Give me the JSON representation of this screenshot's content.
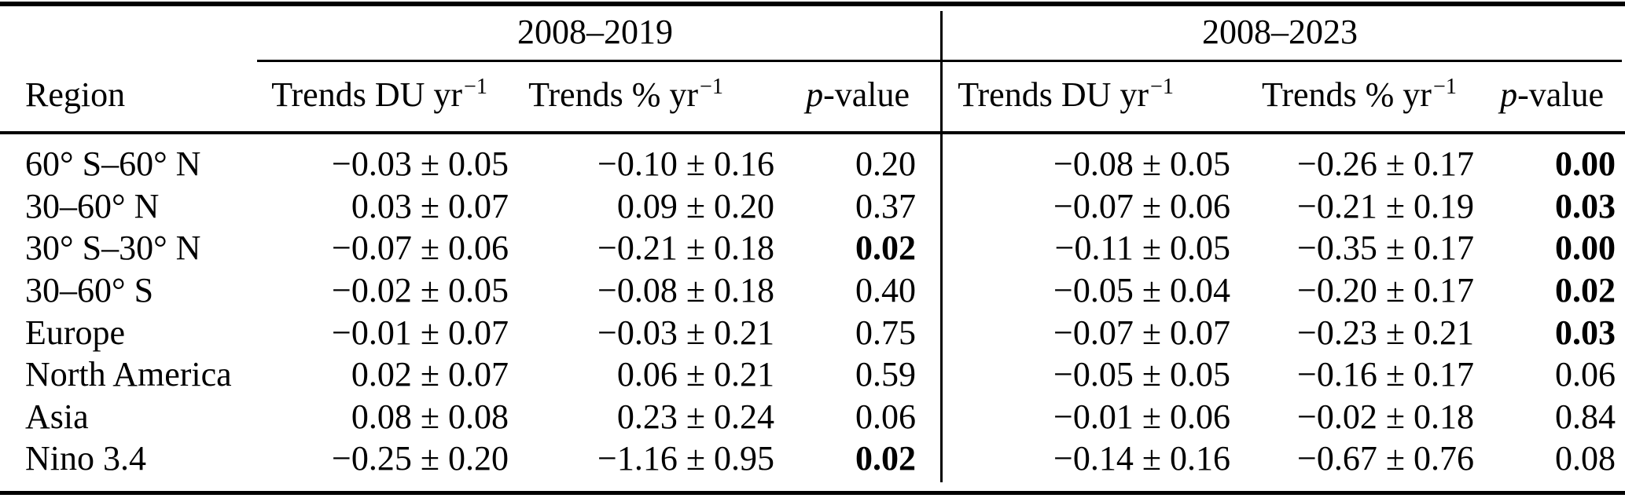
{
  "colors": {
    "text": "#000000",
    "background": "#ffffff",
    "rule": "#000000"
  },
  "table": {
    "group_headers": [
      {
        "label": "2008–2019"
      },
      {
        "label": "2008–2023"
      }
    ],
    "column_headers": {
      "region": "Region",
      "trends_du": {
        "text": "Trends DU yr",
        "sup": "−1"
      },
      "trends_pct": {
        "text": "Trends % yr",
        "sup": "−1"
      },
      "p_value": {
        "italic": "p",
        "rest": "-value"
      }
    },
    "rows": [
      {
        "region": "60° S–60° N",
        "du_2008_2019": "−0.03 ± 0.05",
        "pct_2008_2019": "−0.10 ± 0.16",
        "p_2008_2019": "0.20",
        "p_2008_2019_bold": false,
        "du_2008_2023": "−0.08 ± 0.05",
        "pct_2008_2023": "−0.26 ± 0.17",
        "p_2008_2023": "0.00",
        "p_2008_2023_bold": true
      },
      {
        "region": "30–60° N",
        "du_2008_2019": "0.03 ± 0.07",
        "pct_2008_2019": "0.09 ± 0.20",
        "p_2008_2019": "0.37",
        "p_2008_2019_bold": false,
        "du_2008_2023": "−0.07 ± 0.06",
        "pct_2008_2023": "−0.21 ± 0.19",
        "p_2008_2023": "0.03",
        "p_2008_2023_bold": true
      },
      {
        "region": "30° S–30° N",
        "du_2008_2019": "−0.07 ± 0.06",
        "pct_2008_2019": "−0.21 ± 0.18",
        "p_2008_2019": "0.02",
        "p_2008_2019_bold": true,
        "du_2008_2023": "−0.11 ± 0.05",
        "pct_2008_2023": "−0.35 ± 0.17",
        "p_2008_2023": "0.00",
        "p_2008_2023_bold": true
      },
      {
        "region": "30–60° S",
        "du_2008_2019": "−0.02 ± 0.05",
        "pct_2008_2019": "−0.08 ± 0.18",
        "p_2008_2019": "0.40",
        "p_2008_2019_bold": false,
        "du_2008_2023": "−0.05 ± 0.04",
        "pct_2008_2023": "−0.20 ± 0.17",
        "p_2008_2023": "0.02",
        "p_2008_2023_bold": true
      },
      {
        "region": "Europe",
        "du_2008_2019": "−0.01 ± 0.07",
        "pct_2008_2019": "−0.03 ± 0.21",
        "p_2008_2019": "0.75",
        "p_2008_2019_bold": false,
        "du_2008_2023": "−0.07 ± 0.07",
        "pct_2008_2023": "−0.23 ± 0.21",
        "p_2008_2023": "0.03",
        "p_2008_2023_bold": true
      },
      {
        "region": "North America",
        "du_2008_2019": "0.02 ± 0.07",
        "pct_2008_2019": "0.06 ± 0.21",
        "p_2008_2019": "0.59",
        "p_2008_2019_bold": false,
        "du_2008_2023": "−0.05 ± 0.05",
        "pct_2008_2023": "−0.16 ± 0.17",
        "p_2008_2023": "0.06",
        "p_2008_2023_bold": false
      },
      {
        "region": "Asia",
        "du_2008_2019": "0.08 ± 0.08",
        "pct_2008_2019": "0.23 ± 0.24",
        "p_2008_2019": "0.06",
        "p_2008_2019_bold": false,
        "du_2008_2023": "−0.01 ± 0.06",
        "pct_2008_2023": "−0.02 ± 0.18",
        "p_2008_2023": "0.84",
        "p_2008_2023_bold": false
      },
      {
        "region": "Nino 3.4",
        "du_2008_2019": "−0.25 ± 0.20",
        "pct_2008_2019": "−1.16 ± 0.95",
        "p_2008_2019": "0.02",
        "p_2008_2019_bold": true,
        "du_2008_2023": "−0.14 ± 0.16",
        "pct_2008_2023": "−0.67 ± 0.76",
        "p_2008_2023": "0.08",
        "p_2008_2023_bold": false
      }
    ]
  }
}
